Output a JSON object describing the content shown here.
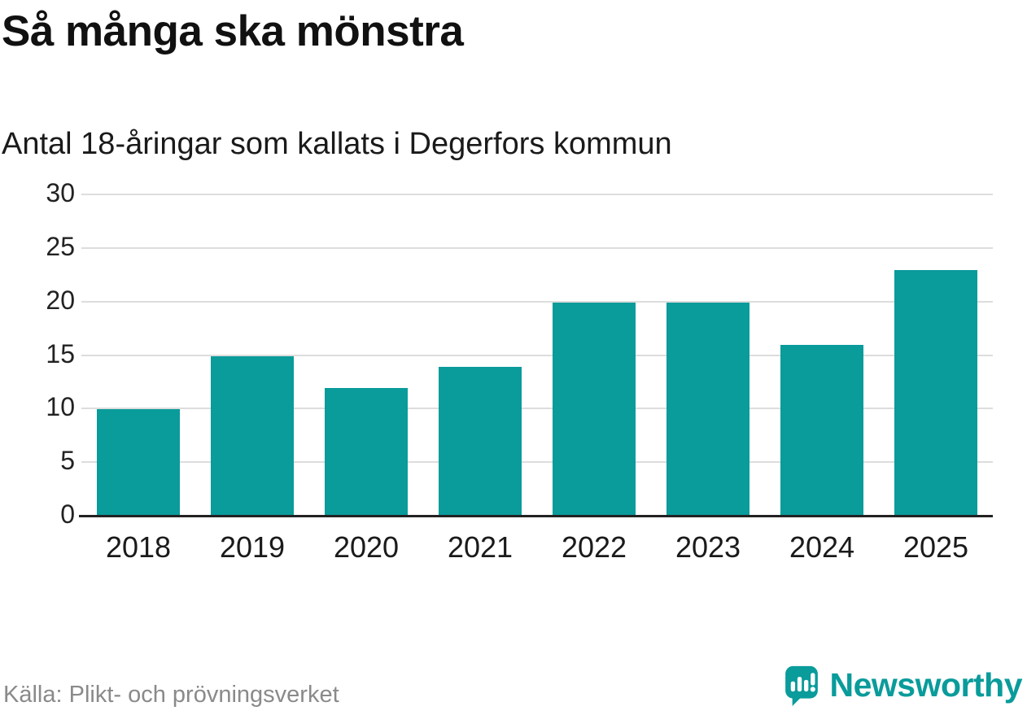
{
  "title": "Så många ska mönstra",
  "subtitle": "Antal 18-åringar som kallats i Degerfors kommun",
  "source": "Källa: Plikt- och prövningsverket",
  "brand": {
    "name": "Newsworthy",
    "icon": "newsworthy-chart-pin-icon"
  },
  "colors": {
    "bar": "#0a9b9b",
    "grid": "#dddddd",
    "axis": "#222222",
    "muted_text": "#8a8a8a"
  },
  "chart_data": {
    "type": "bar",
    "categories": [
      "2018",
      "2019",
      "2020",
      "2021",
      "2022",
      "2023",
      "2024",
      "2025"
    ],
    "values": [
      10,
      15,
      12,
      14,
      20,
      20,
      16,
      23
    ],
    "title": "Så många ska mönstra",
    "subtitle": "Antal 18-åringar som kallats i Degerfors kommun",
    "xlabel": "",
    "ylabel": "",
    "ylim": [
      0,
      30
    ],
    "yticks": [
      0,
      5,
      10,
      15,
      20,
      25,
      30
    ],
    "grid": true,
    "legend": "none",
    "source": "Källa: Plikt- och prövningsverket"
  }
}
